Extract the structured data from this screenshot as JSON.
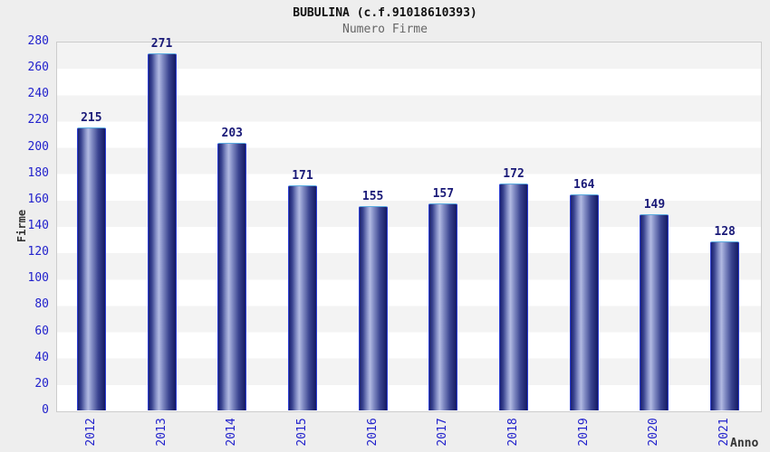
{
  "header": {
    "title": "BUBULINA (c.f.91018610393)",
    "subtitle": "Numero Firme"
  },
  "chart_data": {
    "type": "bar",
    "title": "BUBULINA (c.f.91018610393)",
    "subtitle": "Numero Firme",
    "categories": [
      "2012",
      "2013",
      "2014",
      "2015",
      "2016",
      "2017",
      "2018",
      "2019",
      "2020",
      "2021"
    ],
    "values": [
      215,
      271,
      203,
      171,
      155,
      157,
      172,
      164,
      149,
      128
    ],
    "xlabel": "Anno",
    "ylabel": "Firme",
    "ylim": [
      0,
      280
    ],
    "ytick_step": 20,
    "grid": "horizontal-bands",
    "legend_position": "none",
    "bar_labels_shown": true
  },
  "colors": {
    "page_bg": "#eeeeee",
    "plot_bg": "#ffffff",
    "plot_band": "#f3f3f3",
    "plot_border": "#cccccc",
    "tick_label": "#2222cc",
    "value_label": "#1a1a78",
    "title": "#111111",
    "subtitle": "#666666",
    "axis_title": "#333333",
    "bar_dark": "#1a2070",
    "bar_light": "#b2bae2",
    "bar_border_top": "#5aabe0",
    "bar_border_side": "#2e3fd4"
  }
}
